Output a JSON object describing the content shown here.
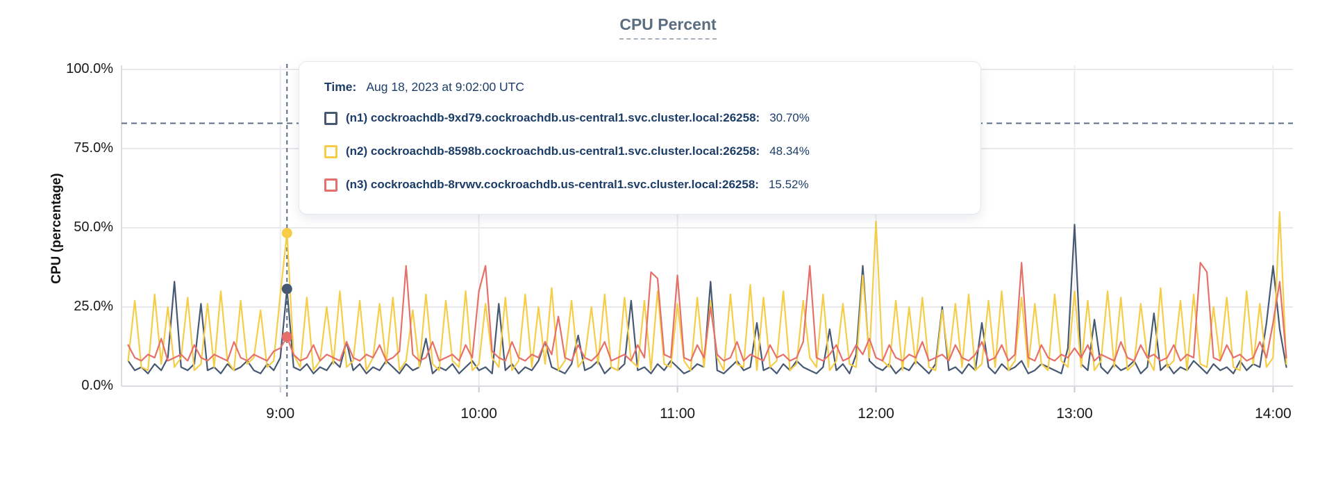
{
  "chart": {
    "title": "CPU Percent",
    "y_axis_label": "CPU (percentage)"
  },
  "tooltip": {
    "time_label": "Time:",
    "time_value": "Aug 18, 2023 at 9:02:00 UTC",
    "series": [
      {
        "label": "(n1) cockroachdb-9xd79.cockroachdb.us-central1.svc.cluster.local:26258:",
        "value": "30.70%",
        "color": "#475872"
      },
      {
        "label": "(n2) cockroachdb-8598b.cockroachdb.us-central1.svc.cluster.local:26258:",
        "value": "48.34%",
        "color": "#F5CD47"
      },
      {
        "label": "(n3) cockroachdb-8rvwv.cockroachdb.us-central1.svc.cluster.local:26258:",
        "value": "15.52%",
        "color": "#E5706A"
      }
    ]
  },
  "chart_data": {
    "type": "line",
    "title": "CPU Percent",
    "xlabel": "",
    "ylabel": "CPU (percentage)",
    "ylim": [
      0,
      100
    ],
    "grid": true,
    "y_ticks": [
      {
        "label": "100.0%",
        "value": 100
      },
      {
        "label": "75.0%",
        "value": 75
      },
      {
        "label": "50.0%",
        "value": 50
      },
      {
        "label": "25.0%",
        "value": 25
      },
      {
        "label": "0.0%",
        "value": 0
      }
    ],
    "x_unit": "minutes since midnight UTC, Aug 18 2023",
    "x_start": 494,
    "x_step": 2,
    "x_range": [
      492,
      846
    ],
    "x_ticks": [
      {
        "label": "9:00",
        "minutes": 540
      },
      {
        "label": "10:00",
        "minutes": 600
      },
      {
        "label": "11:00",
        "minutes": 660
      },
      {
        "label": "12:00",
        "minutes": 720
      },
      {
        "label": "13:00",
        "minutes": 780
      },
      {
        "label": "14:00",
        "minutes": 840
      }
    ],
    "threshold_dashed_line_percent": 83,
    "hover_time_minutes": 542,
    "hover_time_text": "Aug 18, 2023 at 9:02:00 UTC",
    "series": [
      {
        "name": "(n1) cockroachdb-9xd79.cockroachdb.us-central1.svc.cluster.local:26258",
        "color": "#475872",
        "hover_value": 30.7,
        "values": [
          8,
          5,
          6,
          4,
          7,
          5,
          9,
          33,
          6,
          5,
          7,
          26,
          5,
          6,
          4,
          7,
          5,
          6,
          8,
          5,
          4,
          7,
          5,
          9,
          30.7,
          6,
          5,
          7,
          4,
          6,
          5,
          8,
          6,
          14,
          5,
          7,
          4,
          6,
          5,
          8,
          6,
          4,
          7,
          5,
          6,
          15,
          4,
          6,
          5,
          7,
          4,
          6,
          8,
          5,
          6,
          4,
          26,
          5,
          7,
          4,
          6,
          5,
          8,
          14,
          6,
          5,
          4,
          7,
          16,
          5,
          6,
          8,
          4,
          6,
          5,
          7,
          27,
          5,
          6,
          4,
          7,
          5,
          8,
          6,
          4,
          5,
          7,
          6,
          33,
          5,
          4,
          6,
          8,
          5,
          6,
          20,
          5,
          6,
          4,
          7,
          5,
          8,
          6,
          5,
          4,
          6,
          18,
          5,
          7,
          4,
          10,
          38,
          8,
          6,
          5,
          7,
          4,
          6,
          5,
          8,
          6,
          4,
          7,
          25,
          5,
          6,
          4,
          7,
          5,
          20,
          6,
          4,
          7,
          5,
          6,
          8,
          4,
          5,
          7,
          6,
          5,
          4,
          12,
          51,
          7,
          5,
          21,
          6,
          4,
          7,
          5,
          6,
          8,
          4,
          6,
          23,
          5,
          7,
          4,
          6,
          5,
          8,
          6,
          4,
          7,
          5,
          6,
          4,
          8,
          5,
          7,
          6,
          20,
          38,
          18,
          6
        ]
      },
      {
        "name": "(n2) cockroachdb-8598b.cockroachdb.us-central1.svc.cluster.local:26258",
        "color": "#F5CD47",
        "hover_value": 48.34,
        "values": [
          8,
          27,
          6,
          5,
          29,
          7,
          25,
          6,
          9,
          28,
          5,
          7,
          26,
          6,
          30,
          8,
          5,
          27,
          7,
          9,
          24,
          6,
          8,
          29,
          48.34,
          10,
          6,
          28,
          5,
          8,
          25,
          7,
          30,
          6,
          8,
          27,
          5,
          9,
          26,
          7,
          28,
          5,
          8,
          24,
          6,
          29,
          7,
          5,
          27,
          8,
          6,
          30,
          5,
          7,
          26,
          9,
          6,
          28,
          5,
          8,
          29,
          6,
          25,
          7,
          31,
          5,
          8,
          27,
          6,
          9,
          25,
          7,
          29,
          6,
          5,
          28,
          8,
          6,
          27,
          5,
          30,
          7,
          6,
          26,
          8,
          5,
          28,
          6,
          27,
          9,
          5,
          29,
          7,
          6,
          32,
          5,
          28,
          6,
          8,
          30,
          5,
          7,
          27,
          9,
          6,
          29,
          5,
          8,
          26,
          7,
          6,
          35,
          9,
          52,
          8,
          6,
          27,
          5,
          25,
          7,
          28,
          6,
          5,
          24,
          8,
          26,
          6,
          29,
          5,
          7,
          27,
          6,
          30,
          5,
          8,
          28,
          6,
          26,
          7,
          5,
          29,
          8,
          6,
          30,
          6,
          27,
          5,
          8,
          30,
          6,
          28,
          5,
          7,
          26,
          9,
          5,
          31,
          6,
          8,
          27,
          5,
          29,
          7,
          6,
          25,
          8,
          28,
          6,
          5,
          30,
          7,
          26,
          6,
          9,
          55,
          7
        ]
      },
      {
        "name": "(n3) cockroachdb-8rvwv.cockroachdb.us-central1.svc.cluster.local:26258",
        "color": "#E5706A",
        "hover_value": 15.52,
        "values": [
          13,
          9,
          8,
          10,
          9,
          15,
          8,
          9,
          10,
          8,
          13,
          9,
          8,
          10,
          9,
          8,
          14,
          9,
          8,
          10,
          9,
          8,
          11,
          12,
          15.52,
          10,
          8,
          9,
          13,
          8,
          10,
          9,
          8,
          14,
          9,
          8,
          10,
          9,
          13,
          8,
          9,
          11,
          38,
          10,
          8,
          9,
          14,
          8,
          9,
          10,
          8,
          13,
          9,
          30,
          38,
          11,
          9,
          8,
          14,
          9,
          8,
          10,
          9,
          14,
          10,
          22,
          9,
          8,
          13,
          9,
          8,
          10,
          14,
          8,
          9,
          10,
          8,
          13,
          9,
          36,
          34,
          10,
          9,
          35,
          9,
          8,
          13,
          9,
          25,
          10,
          8,
          9,
          14,
          8,
          10,
          9,
          8,
          13,
          9,
          10,
          8,
          9,
          14,
          38,
          9,
          8,
          10,
          13,
          8,
          9,
          13,
          10,
          15,
          9,
          8,
          13,
          9,
          8,
          10,
          9,
          14,
          8,
          9,
          10,
          8,
          13,
          9,
          8,
          10,
          14,
          8,
          9,
          13,
          8,
          10,
          39,
          9,
          8,
          13,
          9,
          8,
          10,
          9,
          12,
          9,
          13,
          8,
          10,
          9,
          8,
          14,
          9,
          8,
          13,
          9,
          10,
          8,
          9,
          13,
          8,
          10,
          9,
          39,
          36,
          9,
          8,
          13,
          9,
          10,
          8,
          9,
          14,
          9,
          20,
          33,
          9
        ]
      }
    ],
    "legend_position": "tooltip-overlay"
  }
}
